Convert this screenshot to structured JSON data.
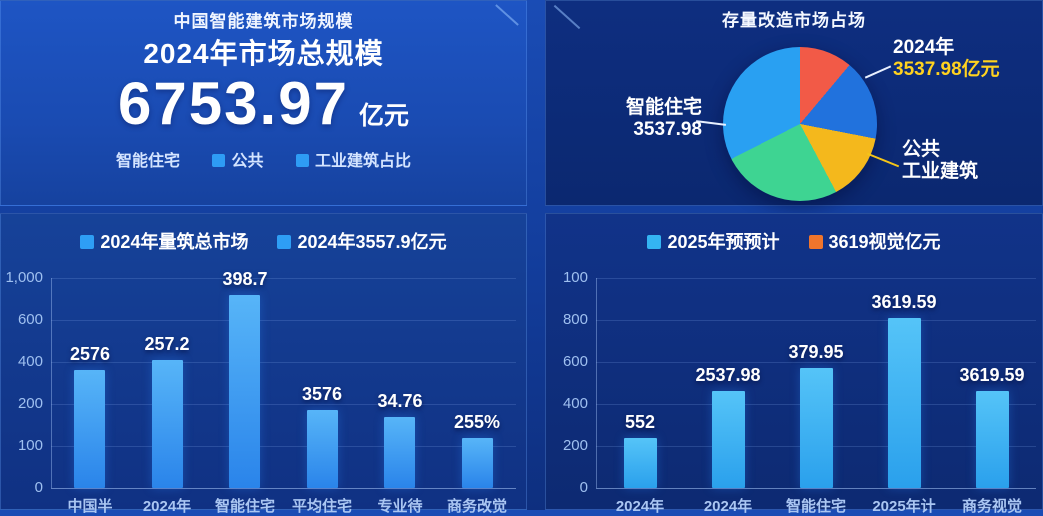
{
  "colors": {
    "accent_blue": "#2e9cf5",
    "accent_cyan": "#34b4f2",
    "accent_orange": "#f0752c",
    "accent_yellow": "#ffd21f",
    "bar_blue_top": "#57b5f8",
    "bar_blue_bottom": "#2a84ea",
    "bar_cyan_top": "#55c4f8",
    "bar_cyan_bottom": "#2aa0ec"
  },
  "panels": {
    "total": {
      "title": "中国智能建筑市场规模",
      "subtitle": "2024年市场总规模",
      "value": "6753.97",
      "unit": "亿元",
      "legend": [
        {
          "label": "智能住宅",
          "swatch": ""
        },
        {
          "label": "公共",
          "swatch": "#2e9cf5"
        },
        {
          "label": "工业建筑占比",
          "swatch": "#2e9cf5"
        }
      ]
    },
    "pie": {
      "title": "存量改造市场占场",
      "callout_right_top": {
        "line1": "2024年",
        "line2": "3537.98亿元"
      },
      "callout_left": {
        "line1": "智能住宅",
        "line2": "3537.98"
      },
      "callout_right_bottom": {
        "line1": "公共",
        "line2": "工业建筑"
      }
    }
  },
  "chart_data": [
    {
      "id": "pie-renovation",
      "type": "pie",
      "title": "存量改造市场占场",
      "legend_position": "callouts",
      "slices": [
        {
          "name": "slice-red",
          "color": "#f25a47",
          "start_deg": 0,
          "end_deg": 40,
          "label": ""
        },
        {
          "name": "slice-blue",
          "color": "#2172dd",
          "start_deg": 40,
          "end_deg": 101,
          "label": "2024年 3537.98亿元"
        },
        {
          "name": "slice-yellow",
          "color": "#f4b81c",
          "start_deg": 101,
          "end_deg": 152,
          "label": "公共 工业建筑"
        },
        {
          "name": "slice-green",
          "color": "#3ed492",
          "start_deg": 152,
          "end_deg": 243,
          "label": ""
        },
        {
          "name": "slice-lightblue",
          "color": "#29a0f2",
          "start_deg": 243,
          "end_deg": 360,
          "label": "智能住宅 3537.98"
        }
      ]
    },
    {
      "id": "bar-left",
      "type": "bar",
      "legend": [
        {
          "label": "2024年量筑总市场",
          "color": "#2e9ef5"
        },
        {
          "label": "2024年3557.9亿元",
          "color": "#2e9ef5"
        }
      ],
      "categories": [
        "中国半",
        "2024年",
        "智能住宅",
        "平均住宅",
        "专业待",
        "商务改觉"
      ],
      "values_label": [
        "2576",
        "257.2",
        "398.7",
        "3576",
        "34.76",
        "255%"
      ],
      "height_frac": [
        0.56,
        0.61,
        0.92,
        0.37,
        0.34,
        0.24
      ],
      "y_ticks": [
        "1,000",
        "600",
        "400",
        "200",
        "100",
        "0"
      ],
      "bar_color_top": "#57b5f8",
      "bar_color_bottom": "#2a84ea",
      "grid": true,
      "xlabel": "",
      "ylabel": ""
    },
    {
      "id": "bar-right",
      "type": "bar",
      "legend": [
        {
          "label": "2025年预预计",
          "color": "#34b4f2"
        },
        {
          "label": "3619视觉亿元",
          "color": "#f0752c"
        }
      ],
      "categories": [
        "2024年",
        "2024年",
        "智能住宅",
        "2025年计",
        "商务视觉"
      ],
      "values_label": [
        "552",
        "2537.98",
        "379.95",
        "3619.59",
        "3619.59"
      ],
      "height_frac": [
        0.24,
        0.46,
        0.57,
        0.81,
        0.46
      ],
      "y_ticks": [
        "100",
        "800",
        "600",
        "400",
        "200",
        "0"
      ],
      "bar_color_top": "#55c4f8",
      "bar_color_bottom": "#2aa0ec",
      "grid": true,
      "xlabel": "",
      "ylabel": ""
    }
  ]
}
